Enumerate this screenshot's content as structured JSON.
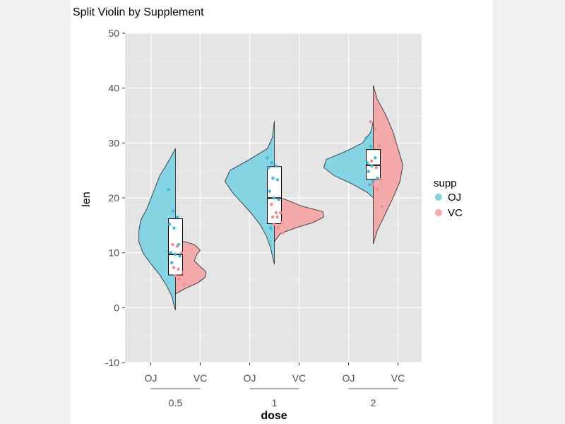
{
  "chart_data": {
    "type": "violin",
    "title": "Split Violin by Supplement",
    "xlabel": "dose",
    "ylabel": "len",
    "ylim": [
      -10,
      50
    ],
    "y_ticks": [
      -10,
      0,
      10,
      20,
      30,
      40,
      50
    ],
    "x_subcategories": [
      "OJ",
      "VC"
    ],
    "x_groups": [
      "0.5",
      "1",
      "2"
    ],
    "grid": true,
    "legend": {
      "title": "supp",
      "position": "right",
      "entries": [
        {
          "name": "OJ",
          "color": "#86d3e4"
        },
        {
          "name": "VC",
          "color": "#f4aaaa"
        }
      ]
    },
    "series": [
      {
        "name": "OJ",
        "color": "#86d3e4",
        "point_color": "#3bb8d6",
        "groups": [
          {
            "dose": "0.5",
            "min": 8.2,
            "q1": 9.7,
            "median": 12.25,
            "q3": 16.2,
            "max": 21.5,
            "violin": {
              "y": [
                29,
                27,
                24,
                21,
                18,
                16,
                14,
                12,
                10,
                8,
                6,
                4,
                2,
                0,
                -0.4
              ],
              "w": [
                0,
                0.12,
                0.32,
                0.45,
                0.58,
                0.7,
                0.74,
                0.74,
                0.66,
                0.5,
                0.32,
                0.18,
                0.07,
                0.02,
                0
              ]
            },
            "points": [
              21.5,
              17.6,
              16.5,
              15.2,
              14.5,
              11.5,
              10.0,
              9.7,
              9.4,
              8.2
            ]
          },
          {
            "dose": "1",
            "min": 14.5,
            "q1": 20.3,
            "median": 23.45,
            "q3": 25.7,
            "max": 27.3,
            "violin": {
              "y": [
                34,
                31,
                29,
                27,
                25,
                23,
                21,
                19,
                17,
                15,
                13,
                11,
                9,
                7.9
              ],
              "w": [
                0,
                0.04,
                0.14,
                0.5,
                0.9,
                1.0,
                0.85,
                0.65,
                0.45,
                0.28,
                0.16,
                0.08,
                0.03,
                0
              ]
            },
            "points": [
              27.3,
              26.4,
              25.8,
              25.5,
              23.6,
              23.3,
              21.2,
              20.0,
              19.7,
              14.5
            ]
          },
          {
            "dose": "2",
            "min": 22.4,
            "q1": 24.6,
            "median": 25.95,
            "q3": 27.1,
            "max": 30.9,
            "violin": {
              "y": [
                34,
                32,
                30,
                28.5,
                27,
                25.5,
                24,
                22.5,
                21,
                20
              ],
              "w": [
                0,
                0.05,
                0.22,
                0.55,
                0.95,
                1.0,
                0.78,
                0.42,
                0.12,
                0
              ]
            },
            "points": [
              30.9,
              29.4,
              27.3,
              26.4,
              25.8,
              25.5,
              24.8,
              23.0,
              23.6,
              22.4
            ]
          }
        ]
      },
      {
        "name": "VC",
        "color": "#f4aaaa",
        "point_color": "#f28b8b",
        "groups": [
          {
            "dose": "0.5",
            "min": 4.2,
            "q1": 5.95,
            "median": 7.15,
            "q3": 10.9,
            "max": 11.5,
            "violin": {
              "y": [
                12.5,
                11.5,
                10.5,
                9.5,
                8.5,
                7.5,
                6.5,
                5.5,
                4.5,
                3.5,
                2.5
              ],
              "w": [
                0,
                0.38,
                0.5,
                0.42,
                0.38,
                0.5,
                0.62,
                0.6,
                0.45,
                0.2,
                0
              ]
            },
            "points": [
              11.5,
              11.2,
              10.0,
              7.3,
              7.0,
              6.4,
              5.8,
              5.2,
              4.2
            ]
          },
          {
            "dose": "1",
            "min": 13.6,
            "q1": 15.3,
            "median": 16.5,
            "q3": 17.3,
            "max": 18.8,
            "violin": {
              "y": [
                25,
                22,
                20,
                18.5,
                17.5,
                16.5,
                15.5,
                14.5,
                13.5,
                12
              ],
              "w": [
                0,
                0.05,
                0.14,
                0.55,
                0.98,
                1.0,
                0.78,
                0.42,
                0.12,
                0
              ]
            },
            "points": [
              18.8,
              17.3,
              17.3,
              16.5,
              16.5,
              15.5,
              15.2,
              14.5,
              13.6
            ]
          },
          {
            "dose": "2",
            "min": 18.5,
            "q1": 23.375,
            "median": 25.95,
            "q3": 28.8,
            "max": 33.9,
            "violin": {
              "y": [
                40.5,
                38,
                35,
                32,
                29,
                26,
                23,
                20,
                17,
                14,
                11.6
              ],
              "w": [
                0,
                0.08,
                0.26,
                0.4,
                0.5,
                0.6,
                0.54,
                0.4,
                0.24,
                0.08,
                0
              ]
            },
            "points": [
              33.9,
              32.5,
              29.5,
              26.7,
              25.5,
              23.3,
              22.4,
              21.5,
              18.5
            ]
          }
        ]
      }
    ]
  }
}
